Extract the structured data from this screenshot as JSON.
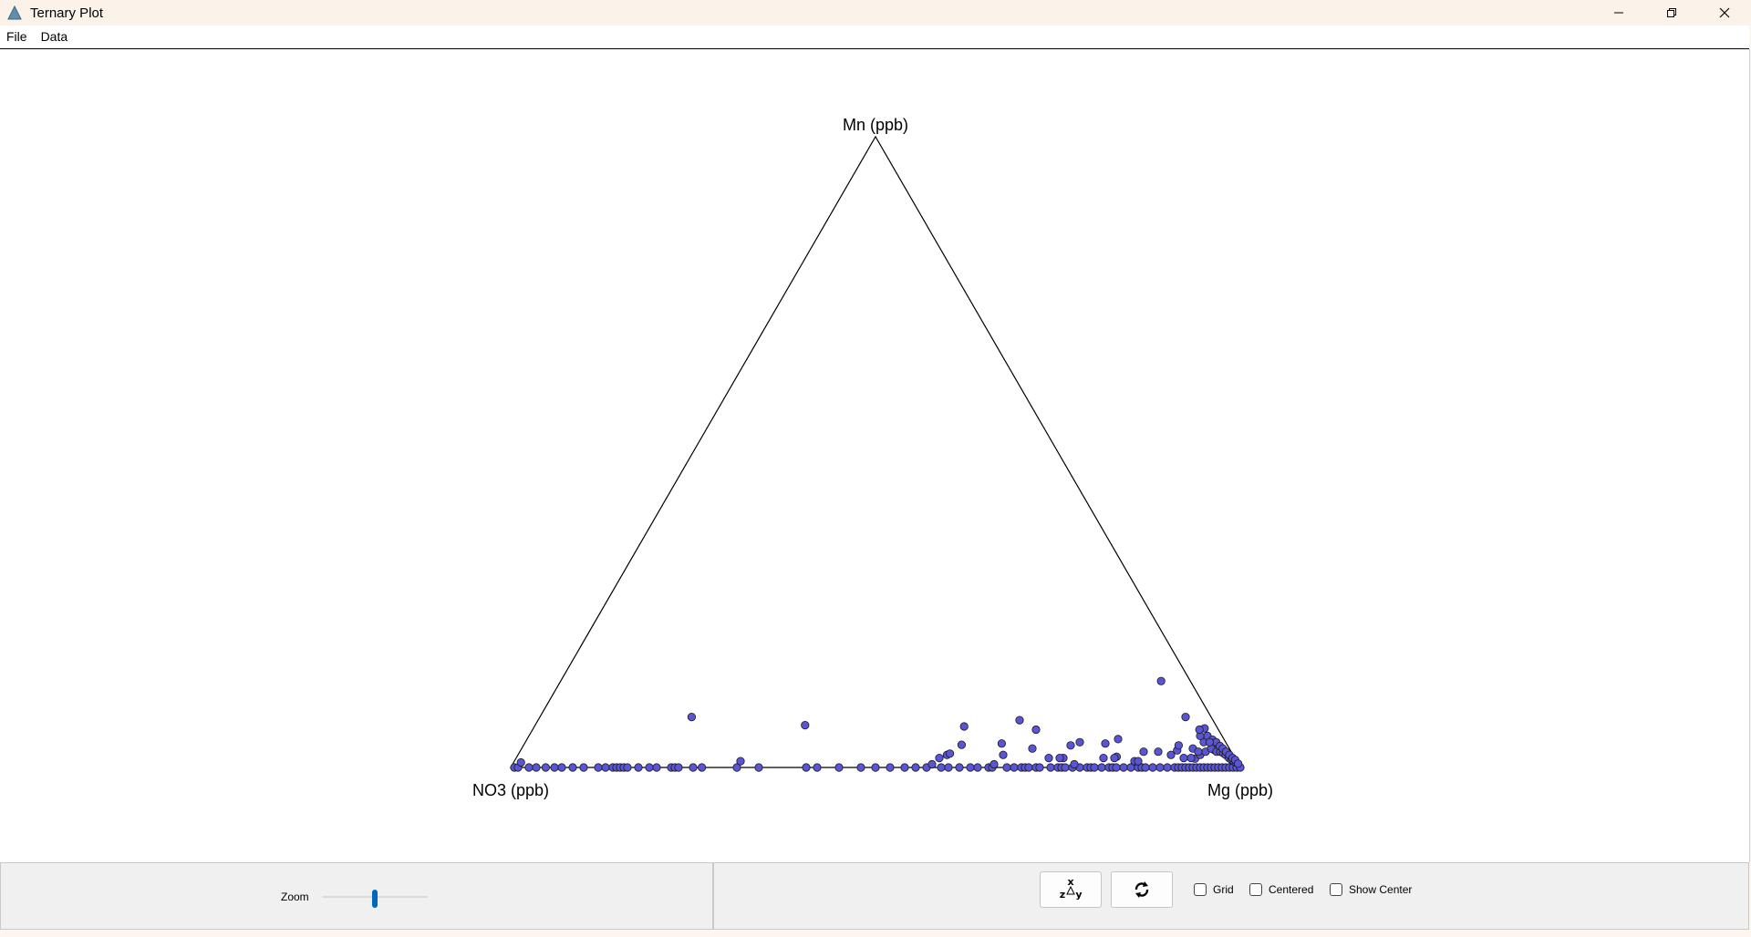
{
  "window": {
    "title": "Ternary Plot",
    "icon": "triangle-app-icon",
    "controls": [
      "minimize-icon",
      "restore-icon",
      "close-icon"
    ]
  },
  "menu": {
    "items": [
      {
        "label": "File"
      },
      {
        "label": "Data"
      }
    ]
  },
  "plot": {
    "labels": {
      "top": "Mn (ppb)",
      "bottom_left": "NO3 (ppb)",
      "bottom_right": "Mg (ppb)"
    },
    "colors": {
      "point_fill": "#5a55d6",
      "point_stroke": "#1a1a1a",
      "axis": "#000000"
    }
  },
  "toolbar": {
    "zoom_label": "Zoom",
    "zoom_value": 0.5,
    "swap_axes_icon": "swap-axes-icon",
    "rotate_icon": "rotate-icon",
    "checkboxes": [
      {
        "label": "Grid",
        "checked": false
      },
      {
        "label": "Centered",
        "checked": false
      },
      {
        "label": "Show Center",
        "checked": false
      }
    ]
  },
  "chart_data": {
    "type": "scatter",
    "ternary_axes": [
      "NO3 (ppb)",
      "Mg (ppb)",
      "Mn (ppb)"
    ],
    "grid": false,
    "points_note_unavailable": null,
    "points": [
      [
        0.995,
        0.005,
        0
      ],
      [
        0.99,
        0.01,
        0
      ],
      [
        0.982,
        0.01,
        0.008
      ],
      [
        0.975,
        0.025,
        0
      ],
      [
        0.965,
        0.035,
        0
      ],
      [
        0.952,
        0.048,
        0
      ],
      [
        0.94,
        0.06,
        0
      ],
      [
        0.93,
        0.07,
        0
      ],
      [
        0.915,
        0.085,
        0
      ],
      [
        0.9,
        0.1,
        0
      ],
      [
        0.88,
        0.12,
        0
      ],
      [
        0.87,
        0.13,
        0
      ],
      [
        0.86,
        0.14,
        0
      ],
      [
        0.855,
        0.145,
        0
      ],
      [
        0.85,
        0.15,
        0
      ],
      [
        0.845,
        0.155,
        0
      ],
      [
        0.84,
        0.16,
        0
      ],
      [
        0.825,
        0.175,
        0
      ],
      [
        0.81,
        0.19,
        0
      ],
      [
        0.8,
        0.2,
        0
      ],
      [
        0.78,
        0.22,
        0
      ],
      [
        0.775,
        0.225,
        0
      ],
      [
        0.77,
        0.23,
        0
      ],
      [
        0.75,
        0.25,
        0
      ],
      [
        0.738,
        0.262,
        0
      ],
      [
        0.712,
        0.208,
        0.08
      ],
      [
        0.69,
        0.31,
        0
      ],
      [
        0.68,
        0.31,
        0.01
      ],
      [
        0.66,
        0.34,
        0
      ],
      [
        0.595,
        0.405,
        0
      ],
      [
        0.58,
        0.42,
        0
      ],
      [
        0.563,
        0.37,
        0.067
      ],
      [
        0.55,
        0.45,
        0
      ],
      [
        0.52,
        0.48,
        0
      ],
      [
        0.5,
        0.5,
        0
      ],
      [
        0.48,
        0.52,
        0
      ],
      [
        0.46,
        0.54,
        0
      ],
      [
        0.445,
        0.555,
        0
      ],
      [
        0.43,
        0.57,
        0
      ],
      [
        0.42,
        0.575,
        0.005
      ],
      [
        0.41,
        0.59,
        0
      ],
      [
        0.405,
        0.58,
        0.015
      ],
      [
        0.4,
        0.6,
        0
      ],
      [
        0.392,
        0.588,
        0.02
      ],
      [
        0.385,
        0.615,
        0
      ],
      [
        0.37,
        0.63,
        0
      ],
      [
        0.364,
        0.6,
        0.036
      ],
      [
        0.36,
        0.64,
        0
      ],
      [
        0.345,
        0.655,
        0
      ],
      [
        0.34,
        0.66,
        0
      ],
      [
        0.335,
        0.66,
        0.005
      ],
      [
        0.32,
        0.68,
        0
      ],
      [
        0.315,
        0.665,
        0.02
      ],
      [
        0.31,
        0.69,
        0
      ],
      [
        0.3,
        0.7,
        0
      ],
      [
        0.295,
        0.705,
        0
      ],
      [
        0.29,
        0.71,
        0
      ],
      [
        0.28,
        0.72,
        0
      ],
      [
        0.275,
        0.725,
        0
      ],
      [
        0.27,
        0.7,
        0.03
      ],
      [
        0.26,
        0.74,
        0
      ],
      [
        0.25,
        0.75,
        0
      ],
      [
        0.245,
        0.755,
        0
      ],
      [
        0.24,
        0.76,
        0
      ],
      [
        0.23,
        0.77,
        0
      ],
      [
        0.22,
        0.78,
        0
      ],
      [
        0.21,
        0.79,
        0
      ],
      [
        0.205,
        0.795,
        0
      ],
      [
        0.2,
        0.8,
        0
      ],
      [
        0.19,
        0.81,
        0
      ],
      [
        0.18,
        0.82,
        0
      ],
      [
        0.175,
        0.825,
        0
      ],
      [
        0.17,
        0.83,
        0
      ],
      [
        0.16,
        0.84,
        0
      ],
      [
        0.15,
        0.85,
        0
      ],
      [
        0.14,
        0.86,
        0
      ],
      [
        0.135,
        0.865,
        0
      ],
      [
        0.13,
        0.87,
        0
      ],
      [
        0.12,
        0.88,
        0
      ],
      [
        0.11,
        0.89,
        0
      ],
      [
        0.1,
        0.9,
        0
      ],
      [
        0.09,
        0.91,
        0
      ],
      [
        0.085,
        0.915,
        0
      ],
      [
        0.08,
        0.92,
        0
      ],
      [
        0.075,
        0.925,
        0
      ],
      [
        0.07,
        0.93,
        0
      ],
      [
        0.065,
        0.935,
        0
      ],
      [
        0.06,
        0.94,
        0
      ],
      [
        0.055,
        0.945,
        0
      ],
      [
        0.05,
        0.95,
        0
      ],
      [
        0.045,
        0.955,
        0
      ],
      [
        0.04,
        0.96,
        0
      ],
      [
        0.035,
        0.965,
        0
      ],
      [
        0.03,
        0.97,
        0
      ],
      [
        0.025,
        0.975,
        0
      ],
      [
        0.02,
        0.98,
        0
      ],
      [
        0.015,
        0.985,
        0
      ],
      [
        0.01,
        0.99,
        0
      ],
      [
        0.005,
        0.995,
        0
      ],
      [
        0,
        1,
        0
      ],
      [
        0.346,
        0.589,
        0.065
      ],
      [
        0.387,
        0.591,
        0.022
      ],
      [
        0.308,
        0.654,
        0.038
      ],
      [
        0.265,
        0.66,
        0.075
      ],
      [
        0.25,
        0.69,
        0.06
      ],
      [
        0.215,
        0.75,
        0.035
      ],
      [
        0.2,
        0.76,
        0.04
      ],
      [
        0.166,
        0.796,
        0.038
      ],
      [
        0.161,
        0.822,
        0.017
      ],
      [
        0.145,
        0.81,
        0.045
      ],
      [
        0.12,
        0.855,
        0.025
      ],
      [
        0.1,
        0.875,
        0.025
      ],
      [
        0.085,
        0.895,
        0.02
      ],
      [
        0.073,
        0.9,
        0.027
      ],
      [
        0.067,
        0.898,
        0.035
      ],
      [
        0.055,
        0.931,
        0.014
      ],
      [
        0.045,
        0.935,
        0.02
      ],
      [
        0.035,
        0.94,
        0.025
      ],
      [
        0.022,
        0.95,
        0.028
      ],
      [
        0.255,
        0.73,
        0.015
      ],
      [
        0.235,
        0.75,
        0.015
      ],
      [
        0.24,
        0.745,
        0.015
      ],
      [
        0.225,
        0.77,
        0.005
      ],
      [
        0.18,
        0.805,
        0.015
      ],
      [
        0.165,
        0.82,
        0.015
      ],
      [
        0.14,
        0.85,
        0.01
      ],
      [
        0.135,
        0.855,
        0.01
      ],
      [
        0.04,
        0.823,
        0.137
      ],
      [
        0.035,
        0.885,
        0.08
      ],
      [
        0.03,
        0.93,
        0.04
      ],
      [
        0.025,
        0.945,
        0.03
      ],
      [
        0.02,
        0.955,
        0.025
      ],
      [
        0.02,
        0.93,
        0.05
      ],
      [
        0.018,
        0.92,
        0.062
      ],
      [
        0.016,
        0.94,
        0.044
      ],
      [
        0.015,
        0.96,
        0.025
      ],
      [
        0.013,
        0.947,
        0.04
      ],
      [
        0.012,
        0.965,
        0.023
      ],
      [
        0.011,
        0.955,
        0.034
      ],
      [
        0.01,
        0.97,
        0.02
      ],
      [
        0.009,
        0.961,
        0.03
      ],
      [
        0.008,
        0.977,
        0.015
      ],
      [
        0.007,
        0.968,
        0.025
      ],
      [
        0.006,
        0.982,
        0.012
      ],
      [
        0.005,
        0.975,
        0.02
      ],
      [
        0.004,
        0.986,
        0.01
      ],
      [
        0.003,
        0.982,
        0.015
      ],
      [
        0.002,
        0.99,
        0.008
      ],
      [
        0.001,
        0.987,
        0.012
      ],
      [
        0,
        0.994,
        0.006
      ],
      [
        0.03,
        0.92,
        0.05
      ],
      [
        0.05,
        0.92,
        0.03
      ],
      [
        0.045,
        0.93,
        0.025
      ],
      [
        0.026,
        0.914,
        0.06
      ],
      [
        0.022,
        0.938,
        0.04
      ],
      [
        0.06,
        0.925,
        0.015
      ],
      [
        0.07,
        0.915,
        0.015
      ]
    ]
  }
}
